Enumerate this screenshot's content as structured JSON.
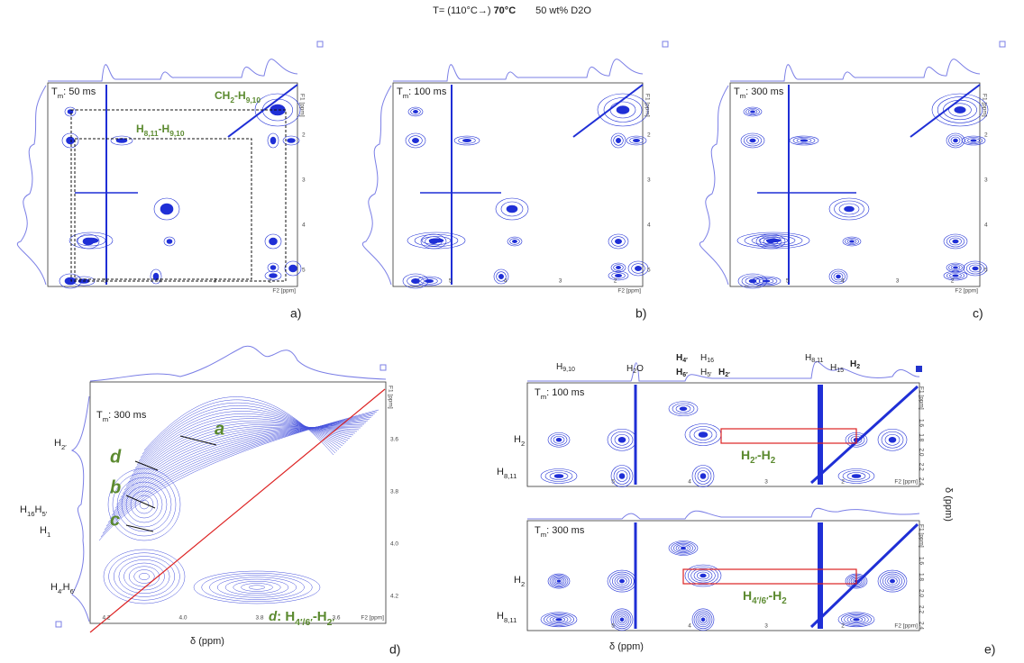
{
  "title": {
    "prefix": "T= (110°C→)",
    "bold": "70°C",
    "suffix": "50 wt% D2O"
  },
  "panels": {
    "a": {
      "letter": "a)",
      "mixing": [
        {
          "text": "T"
        },
        {
          "text": "m",
          "style": "sub"
        },
        {
          "text": ": 50 ms"
        }
      ],
      "x_ticks": [
        "5",
        "4",
        "3",
        "2"
      ],
      "x_unit": "F2 [ppm]",
      "y_ticks": [
        "2",
        "3",
        "4",
        "5"
      ],
      "y_unit": "F1 [ppm]",
      "annotations": [
        [
          {
            "text": "CH"
          },
          {
            "text": "2",
            "style": "sub"
          },
          {
            "text": "-H"
          },
          {
            "text": "9,10",
            "style": "sub"
          }
        ],
        [
          {
            "text": "H"
          },
          {
            "text": "8,11",
            "style": "sub"
          },
          {
            "text": "-H"
          },
          {
            "text": "9,10",
            "style": "sub"
          }
        ]
      ]
    },
    "b": {
      "letter": "b)",
      "mixing": [
        {
          "text": "T"
        },
        {
          "text": "m",
          "style": "sub"
        },
        {
          "text": ": 100 ms"
        }
      ],
      "x_ticks": [
        "5",
        "4",
        "3",
        "2"
      ],
      "x_unit": "F2 [ppm]",
      "y_ticks": [
        "2",
        "3",
        "4",
        "5"
      ],
      "y_unit": "F1 [ppm]"
    },
    "c": {
      "letter": "c)",
      "mixing": [
        {
          "text": "T"
        },
        {
          "text": "m",
          "style": "sub"
        },
        {
          "text": ": 300 ms"
        }
      ],
      "x_ticks": [
        "5",
        "4",
        "3",
        "2"
      ],
      "x_unit": "F2 [ppm]",
      "y_ticks": [
        "2",
        "3",
        "4",
        "5"
      ],
      "y_unit": "F1 [ppm]"
    },
    "d": {
      "letter": "d)",
      "mixing": [
        {
          "text": "T"
        },
        {
          "text": "m",
          "style": "sub"
        },
        {
          "text": ": 300 ms"
        }
      ],
      "x_ticks": [
        "4.2",
        "4.0",
        "3.8",
        "3.6"
      ],
      "x_unit": "F2 [ppm]",
      "y_ticks": [
        "3.6",
        "3.8",
        "4.0",
        "4.2"
      ],
      "y_unit": "F1 [ppm]",
      "axis_label": "δ (ppm)",
      "peaks": {
        "a": "a",
        "b": "b",
        "c": "c",
        "d": "d"
      },
      "rows": {
        "h2p": [
          {
            "text": "H"
          },
          {
            "text": "2′",
            "style": "sub"
          }
        ],
        "h16h5p": [
          {
            "text": "H"
          },
          {
            "text": "16",
            "style": "sub"
          },
          {
            "text": "H"
          },
          {
            "text": "5′",
            "style": "sub"
          }
        ],
        "h1": [
          {
            "text": "H"
          },
          {
            "text": "1",
            "style": "sub"
          }
        ],
        "h4ph6p": [
          {
            "text": "H"
          },
          {
            "text": "4′",
            "style": "sub"
          },
          {
            "text": "H"
          },
          {
            "text": "6′",
            "style": "sub"
          }
        ]
      },
      "assignment": [
        {
          "text": "d",
          "style": "italic"
        },
        {
          "text": ": H"
        },
        {
          "text": "4′/6′",
          "style": "sub"
        },
        {
          "text": "-H"
        },
        {
          "text": "2′",
          "style": "sub"
        }
      ]
    },
    "e": {
      "letter": "e)",
      "axis_label": "δ (ppm)",
      "peaks": {
        "h910": [
          {
            "text": "H"
          },
          {
            "text": "9,10",
            "style": "sub"
          }
        ],
        "h2o": [
          {
            "text": "H"
          },
          {
            "text": "2",
            "style": "sub"
          },
          {
            "text": "O"
          }
        ],
        "h4p": [
          {
            "text": "H",
            "style": "bold"
          },
          {
            "text": "4′",
            "style": "subbold"
          }
        ],
        "h6p": [
          {
            "text": "H",
            "style": "bold"
          },
          {
            "text": "6′",
            "style": "subbold"
          }
        ],
        "h16": [
          {
            "text": "H"
          },
          {
            "text": "16",
            "style": "sub"
          }
        ],
        "h5p": [
          {
            "text": "H"
          },
          {
            "text": "5′",
            "style": "sub"
          }
        ],
        "h2p": [
          {
            "text": "H",
            "style": "bold"
          },
          {
            "text": "2′",
            "style": "subbold"
          }
        ],
        "h811": [
          {
            "text": "H"
          },
          {
            "text": "8,11",
            "style": "sub"
          }
        ],
        "h15": [
          {
            "text": "H"
          },
          {
            "text": "15",
            "style": "sub"
          }
        ],
        "h2": [
          {
            "text": "H",
            "style": "bold"
          },
          {
            "text": "2",
            "style": "subbold"
          }
        ]
      },
      "top": {
        "mixing": [
          {
            "text": "T"
          },
          {
            "text": "m",
            "style": "sub"
          },
          {
            "text": ": 100 ms"
          }
        ],
        "row_h2": [
          {
            "text": "H"
          },
          {
            "text": "2",
            "style": "sub"
          }
        ],
        "row_h811": [
          {
            "text": "H"
          },
          {
            "text": "8,11",
            "style": "sub"
          }
        ],
        "cross": [
          {
            "text": "H"
          },
          {
            "text": "2′",
            "style": "sub"
          },
          {
            "text": "-H"
          },
          {
            "text": "2",
            "style": "sub"
          }
        ],
        "x_ticks": [
          "5",
          "4",
          "3",
          "2"
        ],
        "x_unit": "F2 [ppm]",
        "y_ticks": [
          "1.6",
          "1.8",
          "2.0",
          "2.2",
          "2.4"
        ],
        "y_unit": "F1 [ppm]"
      },
      "bottom": {
        "mixing": [
          {
            "text": "T"
          },
          {
            "text": "m",
            "style": "sub"
          },
          {
            "text": ": 300 ms"
          }
        ],
        "row_h2": [
          {
            "text": "H"
          },
          {
            "text": "2",
            "style": "sub"
          }
        ],
        "row_h811": [
          {
            "text": "H"
          },
          {
            "text": "8,11",
            "style": "sub"
          }
        ],
        "cross": [
          {
            "text": "H"
          },
          {
            "text": "4′/6′",
            "style": "sub"
          },
          {
            "text": "-H"
          },
          {
            "text": "2",
            "style": "sub"
          }
        ],
        "x_ticks": [
          "5",
          "4",
          "3",
          "2"
        ],
        "x_unit": "F2 [ppm]",
        "y_ticks": [
          "1.6",
          "1.8",
          "2.0",
          "2.2",
          "2.4"
        ],
        "y_unit": "F1 [ppm]"
      }
    }
  }
}
